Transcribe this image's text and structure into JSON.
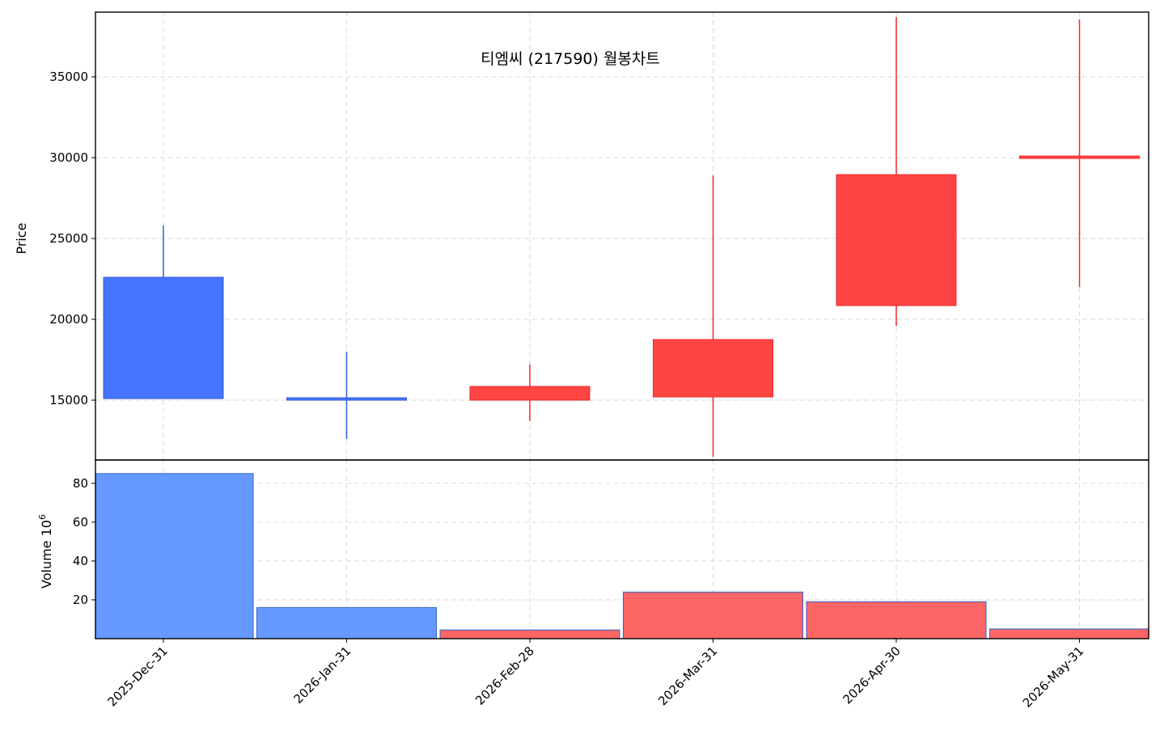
{
  "chart_data": {
    "type": "candlestick",
    "title": "티엠씨 (217590) 월봉차트",
    "colors": {
      "up_body": "#ff4444",
      "up_edge": "#ee2a2a",
      "down_body": "#4673ff",
      "down_edge": "#2f5be0",
      "up_volume": "#ff6666",
      "down_volume": "#6699ff",
      "volume_edge": "#2f64d6"
    },
    "price_panel": {
      "ylabel": "Price",
      "ylim": [
        11300,
        39000
      ],
      "yticks": [
        15000,
        20000,
        25000,
        30000,
        35000
      ],
      "grid": true
    },
    "volume_panel": {
      "ylabel": "Volume",
      "ylabel_exponent": "6",
      "ylim": [
        0,
        92
      ],
      "yticks": [
        20,
        40,
        60,
        80
      ],
      "grid": true
    },
    "categories": [
      "2025-Dec-31",
      "2026-Jan-31",
      "2026-Feb-28",
      "2026-Mar-31",
      "2026-Apr-30",
      "2026-May-31"
    ],
    "candles": [
      {
        "date": "2025-Dec-31",
        "open": 22600,
        "high": 25800,
        "low": 15100,
        "close": 15100
      },
      {
        "date": "2026-Jan-31",
        "open": 15150,
        "high": 18000,
        "low": 12600,
        "close": 15100
      },
      {
        "date": "2026-Feb-28",
        "open": 15000,
        "high": 17200,
        "low": 13700,
        "close": 15850
      },
      {
        "date": "2026-Mar-31",
        "open": 15200,
        "high": 28900,
        "low": 11500,
        "close": 18750
      },
      {
        "date": "2026-Apr-30",
        "open": 20850,
        "high": 38700,
        "low": 19600,
        "close": 28950
      },
      {
        "date": "2026-May-31",
        "open": 29950,
        "high": 38550,
        "low": 22000,
        "close": 30100
      }
    ],
    "volume": [
      85,
      16,
      4.5,
      24,
      19,
      5
    ]
  }
}
